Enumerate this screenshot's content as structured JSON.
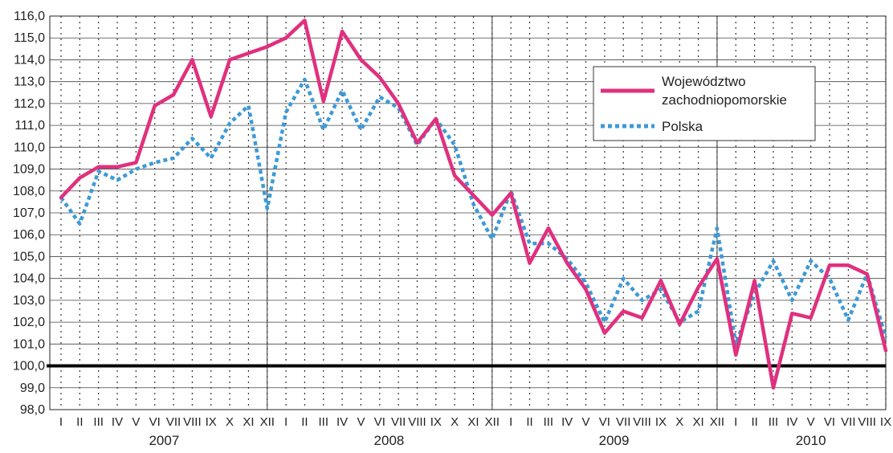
{
  "chart_data": {
    "type": "line",
    "title": "",
    "xlabel": "",
    "ylabel": "",
    "ylim": [
      98,
      116
    ],
    "y_ticks": [
      "98,0",
      "99,0",
      "100,0",
      "101,0",
      "102,0",
      "103,0",
      "104,0",
      "105,0",
      "106,0",
      "107,0",
      "108,0",
      "109,0",
      "110,0",
      "111,0",
      "112,0",
      "113,0",
      "114,0",
      "115,0",
      "116,0"
    ],
    "reference_line": 100,
    "grid": true,
    "legend_position": "top-right",
    "categories": [
      "I",
      "II",
      "III",
      "IV",
      "V",
      "VI",
      "VII",
      "VIII",
      "IX",
      "X",
      "XI",
      "XII",
      "I",
      "II",
      "III",
      "IV",
      "V",
      "VI",
      "VII",
      "VIII",
      "IX",
      "X",
      "XI",
      "XII",
      "I",
      "II",
      "III",
      "IV",
      "V",
      "VI",
      "VII",
      "VIII",
      "IX",
      "X",
      "XI",
      "XII",
      "I",
      "II",
      "III",
      "IV",
      "V",
      "VI",
      "VII",
      "VIII",
      "IX"
    ],
    "years": [
      {
        "label": "2007",
        "start": 0,
        "end": 11
      },
      {
        "label": "2008",
        "start": 12,
        "end": 23
      },
      {
        "label": "2009",
        "start": 24,
        "end": 35
      },
      {
        "label": "2010",
        "start": 36,
        "end": 44
      }
    ],
    "series": [
      {
        "name": "Województwo zachodniopomorskie",
        "name_lines": [
          "Województwo",
          "zachodniopomorskie"
        ],
        "color": "#e0307e",
        "style": "solid",
        "values": [
          107.7,
          108.6,
          109.1,
          109.1,
          109.3,
          111.9,
          112.4,
          114.0,
          111.4,
          114.0,
          114.3,
          114.6,
          115.0,
          115.8,
          112.1,
          115.3,
          114.0,
          113.2,
          112.0,
          110.2,
          111.3,
          108.7,
          107.8,
          106.9,
          107.9,
          104.7,
          106.3,
          104.7,
          103.5,
          101.5,
          102.5,
          102.2,
          103.9,
          101.9,
          103.6,
          104.9,
          100.5,
          103.9,
          99.0,
          102.4,
          102.2,
          104.6,
          104.6,
          104.2,
          100.7
        ]
      },
      {
        "name": "Polska",
        "name_lines": [
          "Polska"
        ],
        "color": "#3d9ad6",
        "style": "dotted",
        "values": [
          107.7,
          106.5,
          108.9,
          108.5,
          109.0,
          109.3,
          109.5,
          110.4,
          109.5,
          111.1,
          111.9,
          107.2,
          111.6,
          113.1,
          110.8,
          112.6,
          110.8,
          112.3,
          111.8,
          110.1,
          111.3,
          110.1,
          107.4,
          105.8,
          108.0,
          105.6,
          105.6,
          104.9,
          103.8,
          102.0,
          104.0,
          103.0,
          103.5,
          102.0,
          102.5,
          106.3,
          101.0,
          103.3,
          104.8,
          103.0,
          104.8,
          104.0,
          102.1,
          104.2,
          101.3
        ]
      }
    ]
  }
}
